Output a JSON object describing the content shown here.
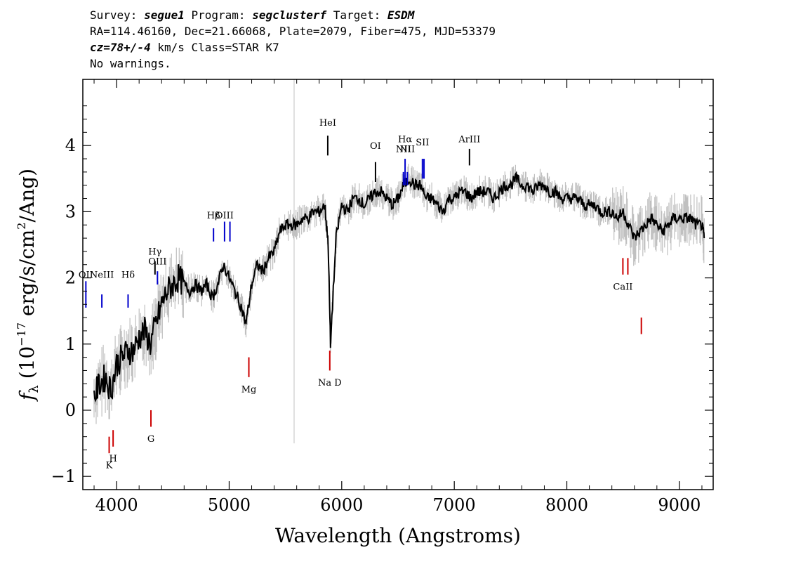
{
  "header": {
    "line1_prefix": "Survey: ",
    "survey": "segue1",
    "program_prefix": " Program: ",
    "program": "segclusterf",
    "target_prefix": " Target: ",
    "target": "ESDM",
    "line2": "RA=114.46160, Dec=21.66068, Plate=2079, Fiber=475, MJD=53379",
    "line3_cz": "cz=78+/-4",
    "line3_rest": " km/s Class=STAR K7",
    "line4": "No warnings."
  },
  "chart_data": {
    "type": "line",
    "title": "",
    "xlabel": "Wavelength (Angstroms)",
    "ylabel": "f_λ (10^-17 erg/s/cm²/Ang)",
    "ylabel_parts": {
      "f": "f",
      "lambda": "λ",
      "open": " (10",
      "exp": "−17",
      "mid": " erg/s/cm",
      "exp2": "2",
      "close": "/Ang)"
    },
    "xlim": [
      3700,
      9300
    ],
    "ylim": [
      -1.2,
      5.0
    ],
    "xticks": [
      4000,
      5000,
      6000,
      7000,
      8000,
      9000
    ],
    "yticks": [
      -1,
      0,
      1,
      2,
      3,
      4
    ],
    "ytick_labels": [
      "−1",
      "0",
      "1",
      "2",
      "3",
      "4"
    ],
    "series": [
      {
        "color": "#000000",
        "x": [
          3800,
          3850,
          3900,
          3950,
          4000,
          4050,
          4100,
          4150,
          4200,
          4250,
          4300,
          4350,
          4400,
          4450,
          4500,
          4550,
          4600,
          4650,
          4700,
          4750,
          4800,
          4850,
          4900,
          4950,
          5000,
          5050,
          5100,
          5150,
          5200,
          5250,
          5300,
          5350,
          5400,
          5450,
          5500,
          5550,
          5600,
          5650,
          5700,
          5750,
          5800,
          5850,
          5880,
          5900,
          5950,
          6000,
          6050,
          6100,
          6150,
          6200,
          6250,
          6300,
          6350,
          6400,
          6450,
          6500,
          6550,
          6600,
          6650,
          6700,
          6750,
          6800,
          6850,
          6900,
          6950,
          7000,
          7050,
          7100,
          7150,
          7200,
          7250,
          7300,
          7350,
          7400,
          7450,
          7500,
          7550,
          7600,
          7650,
          7700,
          7750,
          7800,
          7850,
          7900,
          7950,
          8000,
          8050,
          8100,
          8150,
          8200,
          8250,
          8300,
          8350,
          8400,
          8450,
          8500,
          8550,
          8600,
          8650,
          8700,
          8750,
          8800,
          8850,
          8900,
          8950,
          9000,
          9050,
          9100,
          9150,
          9200,
          9220
        ],
        "y": [
          0.2,
          0.4,
          0.5,
          0.3,
          0.7,
          0.8,
          0.9,
          0.9,
          1.1,
          1.2,
          1.0,
          1.3,
          1.6,
          1.8,
          1.9,
          2.0,
          1.9,
          1.8,
          1.9,
          1.8,
          1.9,
          1.7,
          1.9,
          2.2,
          2.0,
          1.8,
          1.6,
          1.3,
          1.9,
          2.2,
          2.1,
          2.3,
          2.4,
          2.7,
          2.8,
          2.8,
          2.8,
          2.9,
          2.9,
          3.0,
          3.0,
          3.1,
          2.5,
          1.0,
          2.6,
          3.1,
          3.0,
          3.2,
          3.2,
          3.1,
          3.2,
          3.3,
          3.3,
          3.2,
          3.1,
          3.2,
          3.4,
          3.5,
          3.4,
          3.4,
          3.2,
          3.2,
          3.1,
          3.0,
          3.2,
          3.2,
          3.3,
          3.3,
          3.2,
          3.3,
          3.3,
          3.3,
          3.2,
          3.3,
          3.4,
          3.4,
          3.5,
          3.4,
          3.4,
          3.3,
          3.4,
          3.4,
          3.3,
          3.3,
          3.2,
          3.2,
          3.2,
          3.2,
          3.1,
          3.1,
          3.1,
          3.0,
          3.0,
          3.0,
          2.9,
          3.0,
          2.8,
          2.6,
          2.7,
          2.8,
          2.9,
          2.8,
          2.7,
          2.8,
          2.9,
          2.9,
          2.9,
          2.9,
          2.8,
          2.8,
          2.6
        ]
      }
    ],
    "error_color": "#c0c0c0",
    "sky_line": {
      "x": 5577,
      "ymin": -0.5,
      "ymax": 5.0,
      "color": "#c0c0c0"
    },
    "emission_lines": [
      {
        "label": "OII",
        "x": 3727,
        "y_bottom": 1.55,
        "y_top": 1.95,
        "label_y": 2.0,
        "color": "#0000cc"
      },
      {
        "label": "NeIII",
        "x": 3869,
        "y_bottom": 1.55,
        "y_top": 1.75,
        "label_y": 2.0,
        "color": "#0000cc"
      },
      {
        "label": "Hδ",
        "x": 4102,
        "y_bottom": 1.55,
        "y_top": 1.75,
        "label_y": 2.0,
        "color": "#0000cc"
      },
      {
        "label": "Hγ",
        "x": 4341,
        "y_bottom": 2.05,
        "y_top": 2.25,
        "label_y": 2.35,
        "color": "#000000"
      },
      {
        "label": "OIII",
        "x": 4363,
        "y_bottom": 1.9,
        "y_top": 2.1,
        "label_y": 2.2,
        "color": "#0000cc"
      },
      {
        "label": "Hβ",
        "x": 4861,
        "y_bottom": 2.55,
        "y_top": 2.75,
        "label_y": 2.9,
        "color": "#0000cc"
      },
      {
        "label": "OIII",
        "x": 4959,
        "y_bottom": 2.55,
        "y_top": 2.85,
        "label_y": 2.9,
        "color": "#0000cc"
      },
      {
        "label": "",
        "x": 5007,
        "y_bottom": 2.55,
        "y_top": 2.85,
        "label_y": 2.9,
        "color": "#0000cc"
      },
      {
        "label": "HeI",
        "x": 5876,
        "y_bottom": 3.85,
        "y_top": 4.15,
        "label_y": 4.3,
        "color": "#000000"
      },
      {
        "label": "OI",
        "x": 6300,
        "y_bottom": 3.45,
        "y_top": 3.75,
        "label_y": 3.95,
        "color": "#000000"
      },
      {
        "label": "NII",
        "x": 6548,
        "y_bottom": 3.4,
        "y_top": 3.6,
        "label_y": 3.9,
        "color": "#0000cc"
      },
      {
        "label": "Hα",
        "x": 6563,
        "y_bottom": 3.4,
        "y_top": 3.8,
        "label_y": 4.05,
        "color": "#0000cc"
      },
      {
        "label": "NII",
        "x": 6583,
        "y_bottom": 3.4,
        "y_top": 3.6,
        "label_y": 3.9,
        "color": "#0000cc"
      },
      {
        "label": "SII",
        "x": 6717,
        "y_bottom": 3.5,
        "y_top": 3.8,
        "label_y": 4.0,
        "color": "#0000cc"
      },
      {
        "label": "",
        "x": 6731,
        "y_bottom": 3.5,
        "y_top": 3.8,
        "label_y": 4.0,
        "color": "#0000cc"
      },
      {
        "label": "ArIII",
        "x": 7135,
        "y_bottom": 3.7,
        "y_top": 3.95,
        "label_y": 4.05,
        "color": "#000000"
      }
    ],
    "absorption_lines": [
      {
        "label": "K",
        "x": 3934,
        "y_top": -0.4,
        "y_bottom": -0.65,
        "label_y": -0.75,
        "color": "#cc0000"
      },
      {
        "label": "H",
        "x": 3969,
        "y_top": -0.3,
        "y_bottom": -0.55,
        "label_y": -0.65,
        "color": "#cc0000"
      },
      {
        "label": "G",
        "x": 4305,
        "y_top": 0.0,
        "y_bottom": -0.25,
        "label_y": -0.35,
        "color": "#cc0000"
      },
      {
        "label": "Mg",
        "x": 5175,
        "y_top": 0.8,
        "y_bottom": 0.5,
        "label_y": 0.4,
        "color": "#cc0000"
      },
      {
        "label": "Na D",
        "x": 5894,
        "y_top": 0.9,
        "y_bottom": 0.6,
        "label_y": 0.5,
        "color": "#cc0000"
      },
      {
        "label": "CaII",
        "x": 8498,
        "y_top": 2.3,
        "y_bottom": 2.05,
        "label_y": 1.95,
        "color": "#cc0000"
      },
      {
        "label": "",
        "x": 8542,
        "y_top": 2.3,
        "y_bottom": 2.05,
        "label_y": 1.95,
        "color": "#cc0000"
      },
      {
        "label": "",
        "x": 8662,
        "y_top": 1.4,
        "y_bottom": 1.15,
        "label_y": 1.05,
        "color": "#cc0000"
      }
    ]
  }
}
